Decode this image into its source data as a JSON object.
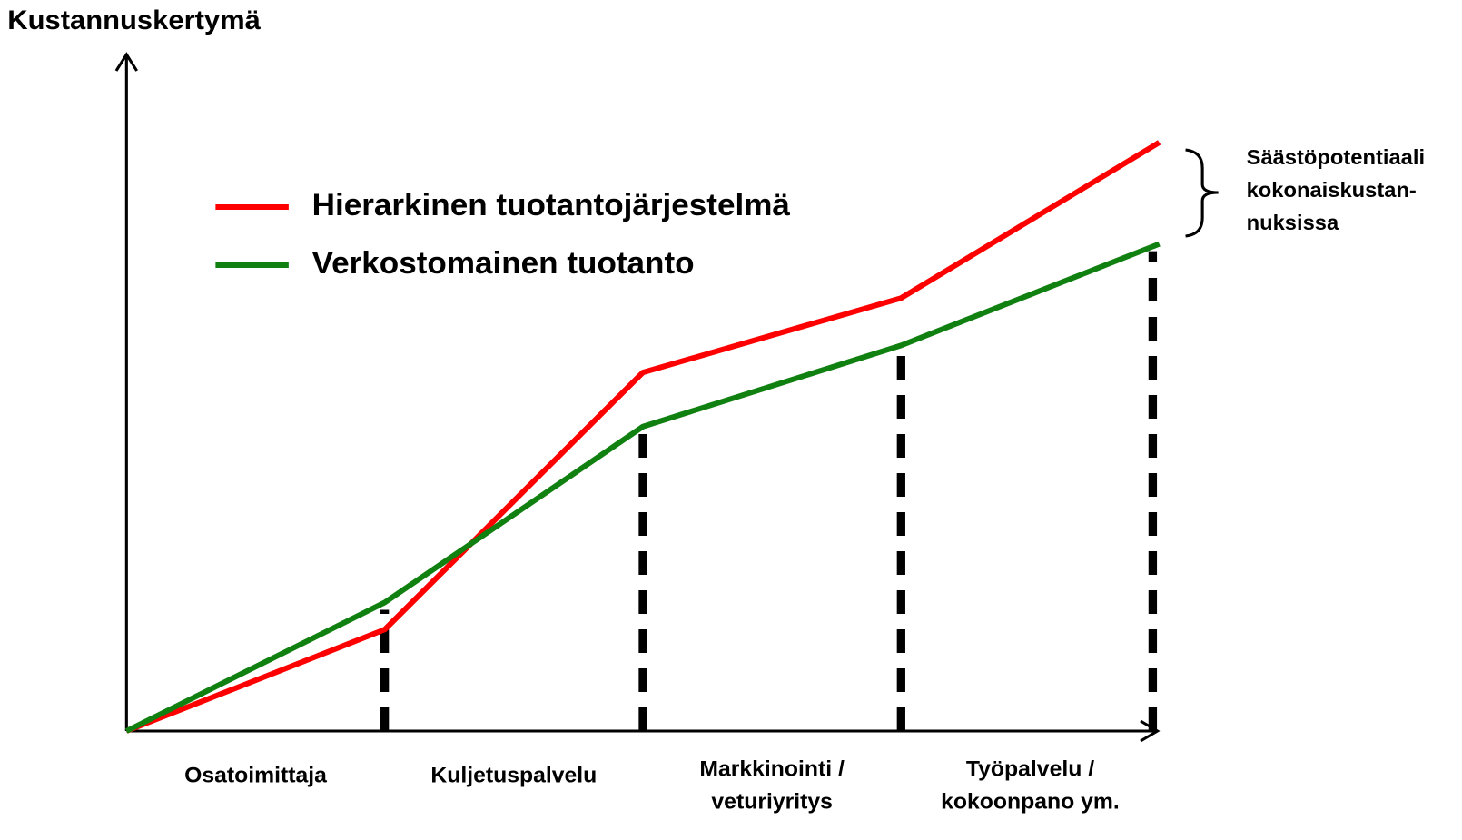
{
  "chart_data": {
    "type": "line",
    "y_label": "Kustannuskertymä",
    "x": [
      0,
      1,
      2,
      3,
      4
    ],
    "xlim": [
      0,
      4
    ],
    "ylim": [
      0,
      100
    ],
    "categories": [
      [
        "Osatoimittaja"
      ],
      [
        "Kuljetuspalvelu"
      ],
      [
        "Markkinointi /",
        "veturiyritys"
      ],
      [
        "Työpalvelu /",
        "kokoonpano ym."
      ]
    ],
    "series": [
      {
        "name": "Hierarkinen tuotantojärjestelmä",
        "color": "#ff0000",
        "values": [
          0,
          15,
          53,
          64,
          87
        ]
      },
      {
        "name": "Verkostomainen tuotanto",
        "color": "#108010",
        "values": [
          0,
          19,
          45,
          57,
          72
        ]
      }
    ],
    "annotation": [
      "Säästöpotentiaali",
      "kokonaiskustan-",
      "nuksissa"
    ]
  }
}
